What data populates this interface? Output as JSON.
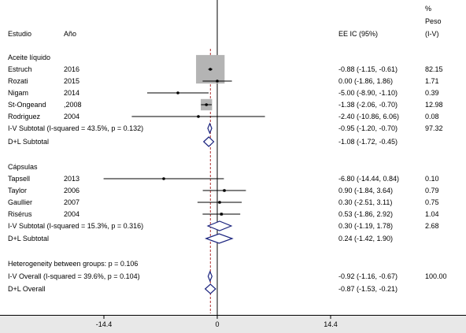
{
  "header": {
    "study": "Estudio",
    "year": "Año",
    "ci": "EE IC (95%)",
    "weight_line1": "%",
    "weight_line2": "Peso",
    "weight_line3": "(I-V)"
  },
  "groups": [
    {
      "title": "Aceite líquido",
      "studies": [
        {
          "name": "Estruch",
          "year": "2016",
          "est": -0.88,
          "lo": -1.15,
          "hi": -0.61,
          "ci_text": "-0.88 (-1.15, -0.61)",
          "weight": "82.15"
        },
        {
          "name": "Rozati",
          "year": "2015",
          "est": 0.0,
          "lo": -1.86,
          "hi": 1.86,
          "ci_text": "0.00 (-1.86, 1.86)",
          "weight": "1.71"
        },
        {
          "name": "Nigam",
          "year": "2014",
          "est": -5.0,
          "lo": -8.9,
          "hi": -1.1,
          "ci_text": "-5.00 (-8.90, -1.10)",
          "weight": "0.39"
        },
        {
          "name": "St-Ongeand",
          "year": ",2008",
          "est": -1.38,
          "lo": -2.06,
          "hi": -0.7,
          "ci_text": "-1.38 (-2.06, -0.70)",
          "weight": "12.98"
        },
        {
          "name": "Rodriguez",
          "year": "2004",
          "est": -2.4,
          "lo": -10.86,
          "hi": 6.06,
          "ci_text": "-2.40 (-10.86, 6.06)",
          "weight": "0.08"
        }
      ],
      "iv_subtotal": {
        "label": "I-V Subtotal  (I-squared = 43.5%, p = 0.132)",
        "est": -0.95,
        "lo": -1.2,
        "hi": -0.7,
        "ci_text": "-0.95 (-1.20, -0.70)",
        "weight": "97.32"
      },
      "dl_subtotal": {
        "label": "D+L Subtotal",
        "est": -1.08,
        "lo": -1.72,
        "hi": -0.45,
        "ci_text": "-1.08 (-1.72, -0.45)"
      }
    },
    {
      "title": "Cápsulas",
      "studies": [
        {
          "name": "Tapsell",
          "year": "2013",
          "est": -6.8,
          "lo": -14.44,
          "hi": 0.84,
          "ci_text": "-6.80 (-14.44, 0.84)",
          "weight": "0.10"
        },
        {
          "name": "Taylor",
          "year": "2006",
          "est": 0.9,
          "lo": -1.84,
          "hi": 3.64,
          "ci_text": "0.90 (-1.84, 3.64)",
          "weight": "0.79"
        },
        {
          "name": "Gaullier",
          "year": "2007",
          "est": 0.3,
          "lo": -2.51,
          "hi": 3.11,
          "ci_text": "0.30 (-2.51, 3.11)",
          "weight": "0.75"
        },
        {
          "name": "Risérus",
          "year": "2004",
          "est": 0.53,
          "lo": -1.86,
          "hi": 2.92,
          "ci_text": "0.53 (-1.86, 2.92)",
          "weight": "1.04"
        }
      ],
      "iv_subtotal": {
        "label": "I-V Subtotal  (I-squared = 15.3%, p = 0.316)",
        "est": 0.3,
        "lo": -1.19,
        "hi": 1.78,
        "ci_text": "0.30 (-1.19, 1.78)",
        "weight": "2.68"
      },
      "dl_subtotal": {
        "label": "D+L Subtotal",
        "est": 0.24,
        "lo": -1.42,
        "hi": 1.9,
        "ci_text": "0.24 (-1.42, 1.90)"
      }
    }
  ],
  "heterogeneity": "Heterogeneity between groups: p = 0.106",
  "iv_overall": {
    "label": "I-V Overall  (I-squared = 39.6%, p = 0.104)",
    "est": -0.92,
    "lo": -1.16,
    "hi": -0.67,
    "ci_text": "-0.92 (-1.16, -0.67)",
    "weight": "100.00"
  },
  "dl_overall": {
    "label": "D+L Overall",
    "est": -0.87,
    "lo": -1.53,
    "hi": -0.21,
    "ci_text": "-0.87 (-1.53, -0.21)"
  },
  "chart_data": {
    "type": "forest",
    "xlim": [
      -15.5,
      15.5
    ],
    "xticks": [
      -14.4,
      0,
      14.4
    ],
    "xtick_labels": [
      "-14.4",
      "0",
      "14.4"
    ],
    "null_line": 0,
    "colors": {
      "box": "#b4b4b4",
      "line": "#000000",
      "diamond": "#1a237e",
      "dash": "#b03030"
    }
  }
}
